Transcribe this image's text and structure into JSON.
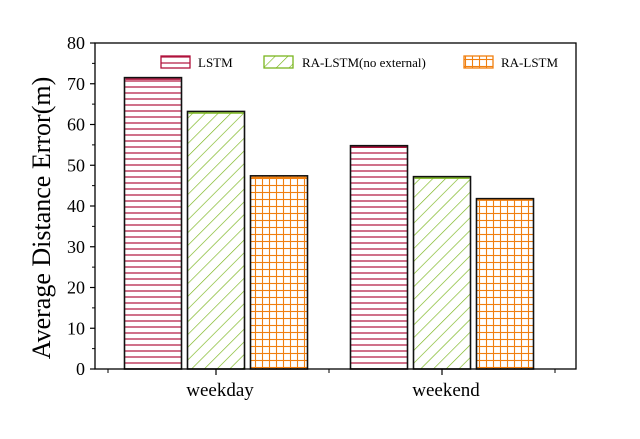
{
  "chart_data": {
    "type": "bar",
    "title": "",
    "xlabel": "",
    "ylabel": "Average Distance Error(m)",
    "categories": [
      "weekday",
      "weekend"
    ],
    "series": [
      {
        "name": "LSTM",
        "values": [
          71.5,
          54.8
        ],
        "color": "#b0123c",
        "pattern": "horizontal-lines"
      },
      {
        "name": "RA-LSTM(no external)",
        "values": [
          63.2,
          47.2
        ],
        "color": "#7ab51d",
        "pattern": "diagonal-lines"
      },
      {
        "name": "RA-LSTM",
        "values": [
          47.4,
          41.8
        ],
        "color": "#f07f0f",
        "pattern": "grid"
      }
    ],
    "ylim": [
      0,
      80
    ],
    "yticks": [
      0,
      10,
      20,
      30,
      40,
      50,
      60,
      70,
      80
    ],
    "grid": false,
    "legend": "top, horizontal"
  }
}
